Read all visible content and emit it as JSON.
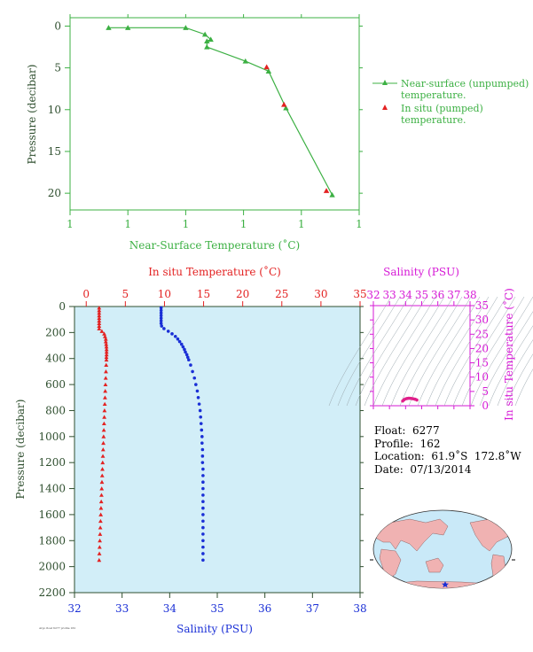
{
  "chart_data": [
    {
      "id": "near_surface",
      "type": "line",
      "xlabel": "Near-Surface Temperature (˚C)",
      "ylabel": "Pressure (decibar)",
      "xtick_labels": [
        "1",
        "1",
        "1",
        "1",
        "1",
        "1"
      ],
      "yticks": [
        0,
        5,
        10,
        15,
        20
      ],
      "ylim": [
        22,
        -1
      ],
      "series": [
        {
          "name": "Near-surface (unpumped) temperature.",
          "color": "#3cb043",
          "marker": "triangle",
          "pressure": [
            0.2,
            0.2,
            0.2,
            1.0,
            1.6,
            1.8,
            2.5,
            4.2,
            5.4,
            9.8,
            20.2
          ],
          "value": [
            0.95,
            1.05,
            1.35,
            1.45,
            1.48,
            1.46,
            1.46,
            1.66,
            1.78,
            1.87,
            2.11
          ]
        },
        {
          "name": "In situ (pumped) temperature.",
          "color": "#e32222",
          "marker": "triangle",
          "pressure": [
            4.9,
            9.4,
            19.7
          ],
          "value": [
            1.77,
            1.86,
            2.08
          ]
        }
      ]
    },
    {
      "id": "profile",
      "type": "scatter",
      "xlabel_top": "In situ Temperature (˚C)",
      "xlabel_bottom": "Salinity (PSU)",
      "ylabel": "Pressure (decibar)",
      "temp_ticks": [
        0,
        5,
        10,
        15,
        20,
        25,
        30,
        35
      ],
      "temp_range": [
        -1.5,
        35
      ],
      "sal_ticks": [
        32,
        33,
        34,
        35,
        36,
        37,
        38
      ],
      "sal_range": [
        32,
        38
      ],
      "pressure_ticks": [
        0,
        200,
        400,
        600,
        800,
        1000,
        1200,
        1400,
        1600,
        1800,
        2000,
        2200
      ],
      "pressure_range": [
        0,
        2200
      ],
      "temperature": {
        "color": "#e32222",
        "pressure": [
          10,
          30,
          50,
          70,
          90,
          110,
          130,
          150,
          170,
          190,
          210,
          230,
          250,
          270,
          290,
          310,
          330,
          350,
          370,
          390,
          410,
          450,
          500,
          550,
          600,
          650,
          700,
          750,
          800,
          850,
          900,
          950,
          1000,
          1050,
          1100,
          1150,
          1200,
          1250,
          1300,
          1350,
          1400,
          1450,
          1500,
          1550,
          1600,
          1650,
          1700,
          1750,
          1800,
          1850,
          1900,
          1950
        ],
        "values": [
          1.65,
          1.65,
          1.65,
          1.65,
          1.65,
          1.65,
          1.65,
          1.65,
          1.65,
          2.0,
          2.3,
          2.4,
          2.5,
          2.5,
          2.55,
          2.58,
          2.6,
          2.6,
          2.6,
          2.58,
          2.58,
          2.55,
          2.52,
          2.49,
          2.46,
          2.43,
          2.4,
          2.37,
          2.34,
          2.31,
          2.28,
          2.25,
          2.22,
          2.19,
          2.16,
          2.13,
          2.1,
          2.07,
          2.04,
          2.01,
          1.98,
          1.95,
          1.92,
          1.89,
          1.86,
          1.83,
          1.8,
          1.77,
          1.74,
          1.71,
          1.68,
          1.65
        ]
      },
      "salinity": {
        "color": "#1a2fd6",
        "pressure": [
          10,
          30,
          50,
          70,
          90,
          110,
          130,
          150,
          170,
          190,
          210,
          230,
          250,
          270,
          290,
          310,
          330,
          350,
          370,
          390,
          410,
          450,
          500,
          550,
          600,
          650,
          700,
          750,
          800,
          850,
          900,
          950,
          1000,
          1050,
          1100,
          1150,
          1200,
          1250,
          1300,
          1350,
          1400,
          1450,
          1500,
          1550,
          1600,
          1650,
          1700,
          1750,
          1800,
          1850,
          1900,
          1950
        ],
        "values": [
          33.82,
          33.82,
          33.82,
          33.82,
          33.82,
          33.82,
          33.82,
          33.83,
          33.88,
          33.97,
          34.05,
          34.12,
          34.17,
          34.21,
          34.25,
          34.28,
          34.31,
          34.33,
          34.36,
          34.38,
          34.4,
          34.44,
          34.48,
          34.52,
          34.55,
          34.58,
          34.6,
          34.62,
          34.64,
          34.65,
          34.66,
          34.67,
          34.68,
          34.68,
          34.69,
          34.69,
          34.69,
          34.7,
          34.7,
          34.7,
          34.7,
          34.7,
          34.7,
          34.7,
          34.7,
          34.7,
          34.7,
          34.7,
          34.7,
          34.7,
          34.7,
          34.7
        ]
      }
    },
    {
      "id": "ts_diagram",
      "type": "scatter",
      "xlabel": "Salinity (PSU)",
      "ylabel": "In situ Temperature (˚C)",
      "sal_ticks": [
        32,
        33,
        34,
        35,
        36,
        37,
        38
      ],
      "temp_ticks": [
        0,
        5,
        10,
        15,
        20,
        25,
        30,
        35
      ],
      "color": "#e0208a",
      "salinity": [
        33.82,
        33.9,
        34.0,
        34.1,
        34.2,
        34.3,
        34.4,
        34.5,
        34.6,
        34.7
      ],
      "temperature": [
        1.65,
        2.1,
        2.4,
        2.55,
        2.6,
        2.58,
        2.5,
        2.4,
        2.25,
        2.0
      ]
    }
  ],
  "info": {
    "float": "Float:  6277",
    "profile": "Profile:  162",
    "location": "Location:  61.9˚S  172.8˚W",
    "date": "Date:  07/13/2014"
  },
  "footnote": "Argo float 6277 profile 162",
  "colors": {
    "green": "#3cb043",
    "red": "#e32222",
    "blue": "#1a2fd6",
    "magenta": "#d61ad6",
    "dark": "#2f4f2f",
    "plot_bg": "#d2eef8"
  }
}
